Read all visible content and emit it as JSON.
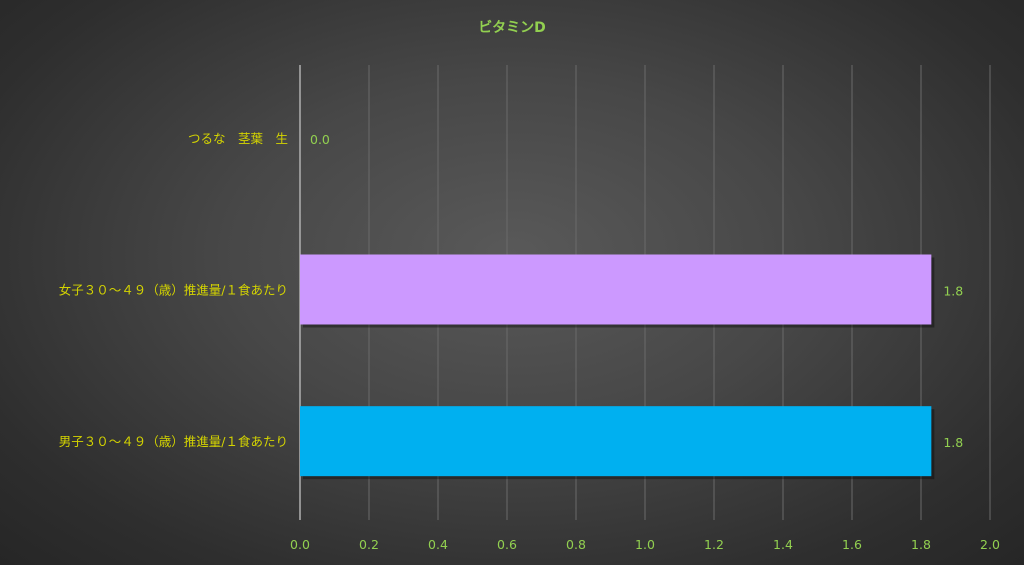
{
  "chart_data": {
    "type": "bar",
    "orientation": "horizontal",
    "title": "ビタミンD",
    "categories": [
      "つるな　茎葉　生",
      "女子３０～４９（歳）推進量/１食あたり",
      "男子３０～４９（歳）推進量/１食あたり"
    ],
    "values": [
      0.0,
      1.83,
      1.83
    ],
    "data_labels": [
      "0.0",
      "1.8",
      "1.8"
    ],
    "bar_colors": [
      "#cc99ff",
      "#cc99ff",
      "#00b0f0"
    ],
    "xlim": [
      0,
      2.0
    ],
    "xticks": [
      "0.0",
      "0.2",
      "0.4",
      "0.6",
      "0.8",
      "1.0",
      "1.2",
      "1.4",
      "1.6",
      "1.8",
      "2.0"
    ],
    "grid": "vertical",
    "legend": "none",
    "colors": {
      "title": "#92d050",
      "category_labels": "#d4d400",
      "tick_labels": "#92d050"
    }
  }
}
